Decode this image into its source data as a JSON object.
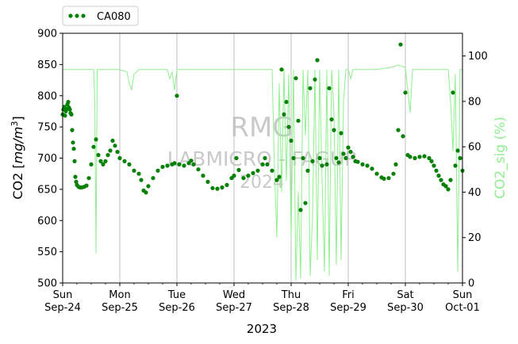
{
  "chart_data": {
    "type": "scatter",
    "title": "",
    "xlabel": "2023",
    "ylabel": "CO2 [mg/m³]",
    "y2label": "CO2_sig (%)",
    "x_start": "2023-09-24",
    "x_end": "2023-10-01",
    "x_ticks": [
      {
        "day": "Sun",
        "date": "Sep-24"
      },
      {
        "day": "Mon",
        "date": "Sep-25"
      },
      {
        "day": "Tue",
        "date": "Sep-26"
      },
      {
        "day": "Wed",
        "date": "Sep-27"
      },
      {
        "day": "Thu",
        "date": "Sep-28"
      },
      {
        "day": "Fri",
        "date": "Sep-29"
      },
      {
        "day": "Sat",
        "date": "Sep-30"
      },
      {
        "day": "Sun",
        "date": "Oct-01"
      }
    ],
    "ylim": [
      500,
      900
    ],
    "y_ticks": [
      500,
      550,
      600,
      650,
      700,
      750,
      800,
      850,
      900
    ],
    "y2lim": [
      0,
      110
    ],
    "y2_ticks": [
      0,
      20,
      40,
      60,
      80,
      100
    ],
    "grid": "vertical-major",
    "legend_position": "top-left-outside",
    "watermark": [
      "RMG",
      "LABMICRO - FAGUP",
      "2024"
    ],
    "colors": {
      "co2": "#008000",
      "sig": "#90ee90",
      "grid": "#b0b0b0",
      "watermark": "#c0c0c0"
    },
    "series": [
      {
        "name": "CA080",
        "axis": "left",
        "style": "dots",
        "points": [
          [
            "2023-09-24 00:00",
            770
          ],
          [
            "2023-09-24 00:20",
            778
          ],
          [
            "2023-09-24 00:40",
            782
          ],
          [
            "2023-09-24 01:00",
            768
          ],
          [
            "2023-09-24 01:20",
            775
          ],
          [
            "2023-09-24 01:40",
            779
          ],
          [
            "2023-09-24 02:00",
            786
          ],
          [
            "2023-09-24 02:20",
            790
          ],
          [
            "2023-09-24 02:40",
            781
          ],
          [
            "2023-09-24 03:00",
            778
          ],
          [
            "2023-09-24 03:20",
            772
          ],
          [
            "2023-09-24 03:40",
            770
          ],
          [
            "2023-09-24 04:00",
            745
          ],
          [
            "2023-09-24 04:20",
            725
          ],
          [
            "2023-09-24 04:40",
            715
          ],
          [
            "2023-09-24 05:00",
            695
          ],
          [
            "2023-09-24 05:20",
            670
          ],
          [
            "2023-09-24 05:40",
            662
          ],
          [
            "2023-09-24 06:00",
            657
          ],
          [
            "2023-09-24 06:40",
            654
          ],
          [
            "2023-09-24 07:20",
            653
          ],
          [
            "2023-09-24 08:00",
            653
          ],
          [
            "2023-09-24 09:00",
            654
          ],
          [
            "2023-09-24 10:00",
            656
          ],
          [
            "2023-09-24 11:00",
            668
          ],
          [
            "2023-09-24 12:00",
            690
          ],
          [
            "2023-09-24 13:00",
            718
          ],
          [
            "2023-09-24 14:00",
            730
          ],
          [
            "2023-09-24 15:00",
            705
          ],
          [
            "2023-09-24 16:00",
            695
          ],
          [
            "2023-09-24 17:00",
            690
          ],
          [
            "2023-09-24 18:00",
            695
          ],
          [
            "2023-09-24 19:00",
            705
          ],
          [
            "2023-09-24 20:00",
            712
          ],
          [
            "2023-09-24 21:00",
            728
          ],
          [
            "2023-09-24 22:00",
            720
          ],
          [
            "2023-09-24 23:00",
            710
          ],
          [
            "2023-09-25 00:00",
            700
          ],
          [
            "2023-09-25 02:00",
            695
          ],
          [
            "2023-09-25 04:00",
            690
          ],
          [
            "2023-09-25 06:00",
            680
          ],
          [
            "2023-09-25 08:00",
            675
          ],
          [
            "2023-09-25 09:00",
            665
          ],
          [
            "2023-09-25 10:00",
            648
          ],
          [
            "2023-09-25 11:00",
            645
          ],
          [
            "2023-09-25 12:00",
            655
          ],
          [
            "2023-09-25 14:00",
            668
          ],
          [
            "2023-09-25 16:00",
            680
          ],
          [
            "2023-09-25 18:00",
            686
          ],
          [
            "2023-09-25 20:00",
            688
          ],
          [
            "2023-09-25 22:00",
            690
          ],
          [
            "2023-09-25 23:00",
            692
          ],
          [
            "2023-09-26 00:00",
            800
          ],
          [
            "2023-09-26 01:00",
            690
          ],
          [
            "2023-09-26 03:00",
            688
          ],
          [
            "2023-09-26 05:00",
            692
          ],
          [
            "2023-09-26 06:00",
            696
          ],
          [
            "2023-09-26 07:00",
            690
          ],
          [
            "2023-09-26 09:00",
            682
          ],
          [
            "2023-09-26 11:00",
            672
          ],
          [
            "2023-09-26 13:00",
            662
          ],
          [
            "2023-09-26 15:00",
            652
          ],
          [
            "2023-09-26 17:00",
            651
          ],
          [
            "2023-09-26 19:00",
            653
          ],
          [
            "2023-09-26 21:00",
            657
          ],
          [
            "2023-09-26 23:00",
            668
          ],
          [
            "2023-09-27 00:00",
            672
          ],
          [
            "2023-09-27 01:00",
            700
          ],
          [
            "2023-09-27 02:00",
            681
          ],
          [
            "2023-09-27 04:00",
            668
          ],
          [
            "2023-09-27 06:00",
            672
          ],
          [
            "2023-09-27 08:00",
            676
          ],
          [
            "2023-09-27 10:00",
            680
          ],
          [
            "2023-09-27 12:00",
            690
          ],
          [
            "2023-09-27 13:00",
            700
          ],
          [
            "2023-09-27 14:00",
            690
          ],
          [
            "2023-09-27 16:00",
            680
          ],
          [
            "2023-09-27 18:00",
            665
          ],
          [
            "2023-09-27 19:00",
            670
          ],
          [
            "2023-09-27 20:00",
            842
          ],
          [
            "2023-09-27 21:00",
            770
          ],
          [
            "2023-09-27 22:00",
            790
          ],
          [
            "2023-09-27 23:00",
            750
          ],
          [
            "2023-09-28 00:00",
            728
          ],
          [
            "2023-09-28 01:00",
            700
          ],
          [
            "2023-09-28 02:00",
            828
          ],
          [
            "2023-09-28 03:00",
            760
          ],
          [
            "2023-09-28 04:00",
            617
          ],
          [
            "2023-09-28 05:00",
            700
          ],
          [
            "2023-09-28 06:00",
            628
          ],
          [
            "2023-09-28 07:00",
            680
          ],
          [
            "2023-09-28 08:00",
            812
          ],
          [
            "2023-09-28 09:00",
            695
          ],
          [
            "2023-09-28 10:00",
            826
          ],
          [
            "2023-09-28 11:00",
            857
          ],
          [
            "2023-09-28 12:00",
            700
          ],
          [
            "2023-09-28 13:00",
            688
          ],
          [
            "2023-09-28 15:00",
            690
          ],
          [
            "2023-09-28 16:00",
            812
          ],
          [
            "2023-09-28 17:00",
            762
          ],
          [
            "2023-09-28 18:00",
            745
          ],
          [
            "2023-09-28 19:00",
            700
          ],
          [
            "2023-09-28 20:00",
            693
          ],
          [
            "2023-09-28 21:00",
            740
          ],
          [
            "2023-09-28 22:00",
            707
          ],
          [
            "2023-09-28 23:00",
            700
          ],
          [
            "2023-09-29 00:00",
            717
          ],
          [
            "2023-09-29 01:00",
            710
          ],
          [
            "2023-09-29 02:00",
            702
          ],
          [
            "2023-09-29 03:00",
            695
          ],
          [
            "2023-09-29 04:00",
            694
          ],
          [
            "2023-09-29 06:00",
            690
          ],
          [
            "2023-09-29 08:00",
            688
          ],
          [
            "2023-09-29 10:00",
            683
          ],
          [
            "2023-09-29 12:00",
            675
          ],
          [
            "2023-09-29 14:00",
            669
          ],
          [
            "2023-09-29 15:00",
            667
          ],
          [
            "2023-09-29 17:00",
            668
          ],
          [
            "2023-09-29 19:00",
            675
          ],
          [
            "2023-09-29 20:00",
            690
          ],
          [
            "2023-09-29 21:00",
            745
          ],
          [
            "2023-09-29 22:00",
            882
          ],
          [
            "2023-09-29 23:00",
            735
          ],
          [
            "2023-09-30 00:00",
            805
          ],
          [
            "2023-09-30 01:00",
            705
          ],
          [
            "2023-09-30 02:00",
            702
          ],
          [
            "2023-09-30 04:00",
            700
          ],
          [
            "2023-09-30 06:00",
            702
          ],
          [
            "2023-09-30 08:00",
            703
          ],
          [
            "2023-09-30 10:00",
            700
          ],
          [
            "2023-09-30 11:00",
            695
          ],
          [
            "2023-09-30 12:00",
            688
          ],
          [
            "2023-09-30 13:00",
            680
          ],
          [
            "2023-09-30 14:00",
            672
          ],
          [
            "2023-09-30 15:00",
            665
          ],
          [
            "2023-09-30 16:00",
            658
          ],
          [
            "2023-09-30 17:00",
            655
          ],
          [
            "2023-09-30 18:00",
            650
          ],
          [
            "2023-09-30 19:00",
            665
          ],
          [
            "2023-09-30 20:00",
            805
          ],
          [
            "2023-09-30 21:00",
            688
          ],
          [
            "2023-09-30 22:00",
            712
          ],
          [
            "2023-09-30 23:00",
            700
          ],
          [
            "2023-10-01 00:00",
            680
          ]
        ]
      },
      {
        "name": "CO2_sig",
        "axis": "right",
        "style": "line",
        "points": [
          [
            "2023-09-24 00:00",
            94
          ],
          [
            "2023-09-24 12:00",
            94
          ],
          [
            "2023-09-24 13:00",
            94
          ],
          [
            "2023-09-24 13:30",
            80
          ],
          [
            "2023-09-24 14:00",
            13
          ],
          [
            "2023-09-24 14:30",
            94
          ],
          [
            "2023-09-24 22:00",
            94
          ],
          [
            "2023-09-25 00:00",
            94
          ],
          [
            "2023-09-25 03:00",
            93
          ],
          [
            "2023-09-25 04:00",
            88
          ],
          [
            "2023-09-25 05:00",
            85
          ],
          [
            "2023-09-25 06:00",
            92
          ],
          [
            "2023-09-25 08:00",
            94
          ],
          [
            "2023-09-25 20:00",
            94
          ],
          [
            "2023-09-25 21:00",
            90
          ],
          [
            "2023-09-25 22:00",
            93
          ],
          [
            "2023-09-25 23:00",
            85
          ],
          [
            "2023-09-26 00:00",
            94
          ],
          [
            "2023-09-26 12:00",
            94
          ],
          [
            "2023-09-26 14:00",
            94
          ],
          [
            "2023-09-27 00:00",
            94
          ],
          [
            "2023-09-27 12:00",
            94
          ],
          [
            "2023-09-27 16:00",
            94
          ],
          [
            "2023-09-27 17:00",
            50
          ],
          [
            "2023-09-27 18:00",
            20
          ],
          [
            "2023-09-27 19:00",
            88
          ],
          [
            "2023-09-27 20:00",
            40
          ],
          [
            "2023-09-27 21:00",
            94
          ],
          [
            "2023-09-27 22:00",
            45
          ],
          [
            "2023-09-27 23:00",
            92
          ],
          [
            "2023-09-28 00:00",
            20
          ],
          [
            "2023-09-28 01:00",
            94
          ],
          [
            "2023-09-28 02:00",
            1
          ],
          [
            "2023-09-28 03:00",
            40
          ],
          [
            "2023-09-28 04:00",
            2
          ],
          [
            "2023-09-28 05:00",
            94
          ],
          [
            "2023-09-28 06:00",
            65
          ],
          [
            "2023-09-28 07:00",
            94
          ],
          [
            "2023-09-28 08:00",
            3
          ],
          [
            "2023-09-28 09:00",
            30
          ],
          [
            "2023-09-28 10:00",
            94
          ],
          [
            "2023-09-28 11:00",
            10
          ],
          [
            "2023-09-28 12:00",
            94
          ],
          [
            "2023-09-28 13:00",
            45
          ],
          [
            "2023-09-28 14:00",
            5
          ],
          [
            "2023-09-28 15:00",
            94
          ],
          [
            "2023-09-28 16:00",
            3
          ],
          [
            "2023-09-28 17:00",
            94
          ],
          [
            "2023-09-28 18:00",
            75
          ],
          [
            "2023-09-28 19:00",
            8
          ],
          [
            "2023-09-28 20:00",
            94
          ],
          [
            "2023-09-28 21:00",
            10
          ],
          [
            "2023-09-28 22:00",
            80
          ],
          [
            "2023-09-28 23:00",
            94
          ],
          [
            "2023-09-29 00:00",
            94
          ],
          [
            "2023-09-29 01:00",
            90
          ],
          [
            "2023-09-29 02:00",
            94
          ],
          [
            "2023-09-29 12:00",
            94
          ],
          [
            "2023-09-29 18:00",
            95
          ],
          [
            "2023-09-29 21:00",
            96
          ],
          [
            "2023-09-30 00:00",
            95
          ],
          [
            "2023-09-30 02:00",
            75
          ],
          [
            "2023-09-30 03:00",
            94
          ],
          [
            "2023-09-30 12:00",
            94
          ],
          [
            "2023-09-30 18:00",
            94
          ],
          [
            "2023-09-30 19:00",
            80
          ],
          [
            "2023-09-30 20:00",
            58
          ],
          [
            "2023-09-30 21:00",
            92
          ],
          [
            "2023-09-30 22:00",
            5
          ],
          [
            "2023-09-30 23:00",
            94
          ],
          [
            "2023-10-01 00:00",
            94
          ]
        ]
      }
    ]
  }
}
